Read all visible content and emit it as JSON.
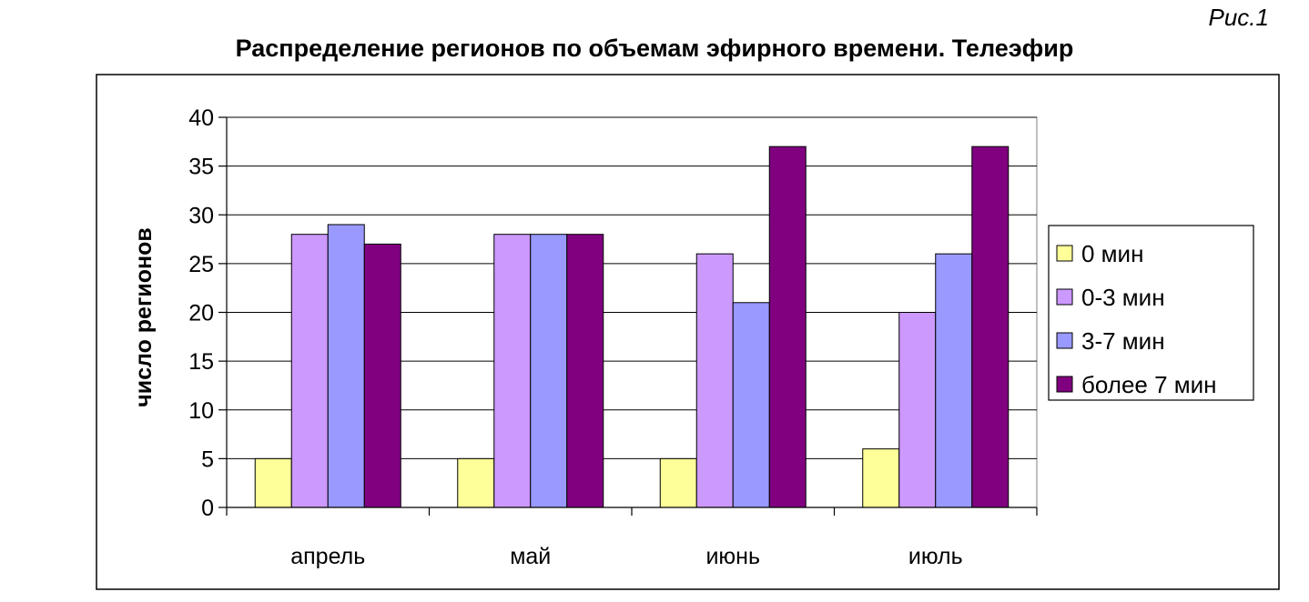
{
  "figure_label": "Рис.1",
  "chart_data": {
    "type": "bar",
    "title": "Распределение регионов по объемам эфирного времени. Телеэфир",
    "ylabel": "число регионов",
    "xlabel": "",
    "categories": [
      "апрель",
      "май",
      "июнь",
      "июль"
    ],
    "ylim": [
      0,
      40
    ],
    "yticks": [
      0,
      5,
      10,
      15,
      20,
      25,
      30,
      35,
      40
    ],
    "grid": true,
    "legend_position": "right",
    "series": [
      {
        "name": "0 мин",
        "color": "#FFFF99",
        "values": [
          5,
          5,
          5,
          6
        ]
      },
      {
        "name": "0-3 мин",
        "color": "#CC99FF",
        "values": [
          28,
          28,
          26,
          20
        ]
      },
      {
        "name": "3-7 мин",
        "color": "#9999FF",
        "values": [
          29,
          28,
          21,
          26
        ]
      },
      {
        "name": "более 7 мин",
        "color": "#800080",
        "values": [
          27,
          28,
          37,
          37
        ]
      }
    ]
  }
}
